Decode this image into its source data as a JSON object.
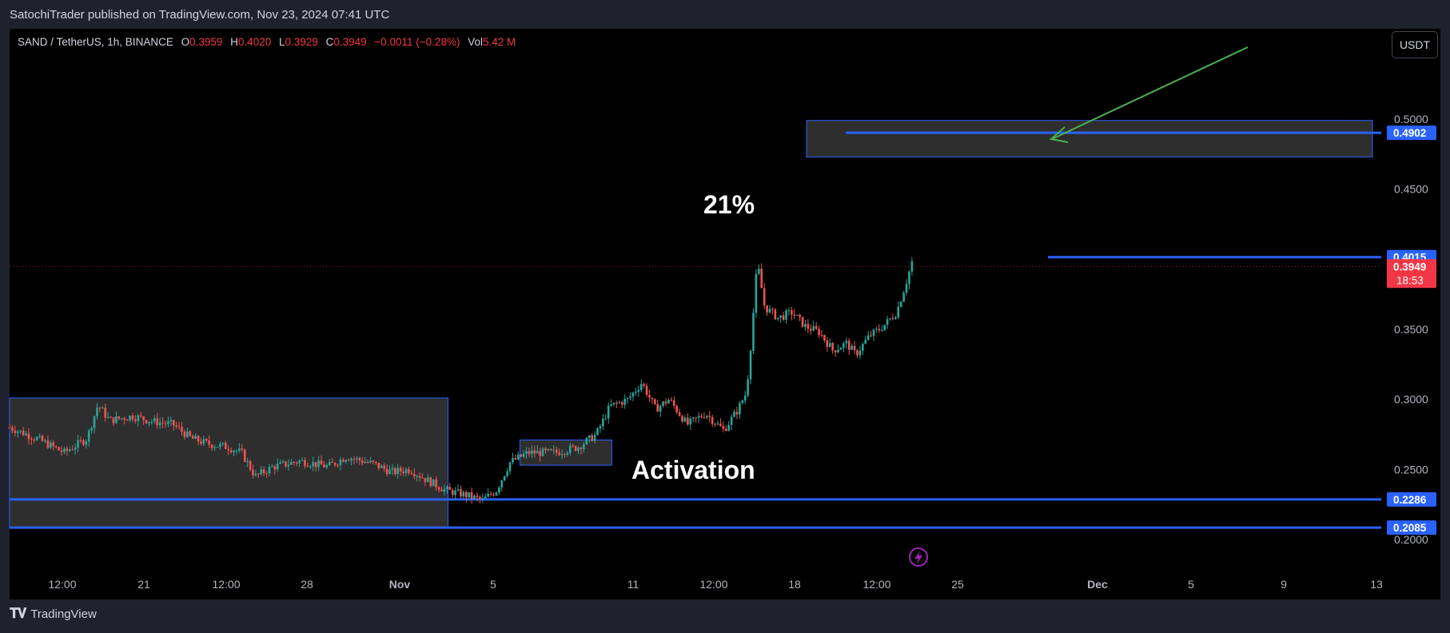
{
  "header": {
    "published": "SatochiTrader published on TradingView.com, Nov 23, 2024 07:41 UTC"
  },
  "legend": {
    "symbol": "SAND / TetherUS, 1h, BINANCE",
    "o_label": "O",
    "o": "0.3959",
    "h_label": "H",
    "h": "0.4020",
    "l_label": "L",
    "l": "0.3929",
    "c_label": "C",
    "c": "0.3949",
    "change": "−0.0011 (−0.28%)",
    "vol_label": "Vol",
    "vol": "5.42 M"
  },
  "currency_button": "USDT",
  "footer": {
    "logo_icon": "tradingview-logo-icon",
    "brand": "TradingView"
  },
  "chart_data": {
    "type": "candlestick",
    "title": "SAND / TetherUS, 1h, BINANCE",
    "xlabel": "",
    "ylabel": "",
    "ylim": [
      0.19,
      0.54
    ],
    "grid": false,
    "x_tick_labels": [
      "12:00",
      "21",
      "12:00",
      "28",
      "Nov",
      "5",
      "11",
      "12:00",
      "18",
      "12:00",
      "25",
      "Dec",
      "5",
      "9",
      "13"
    ],
    "y_tick_labels": [
      "0.5000",
      "0.4500",
      "0.3500",
      "0.3000",
      "0.2500",
      "0.2000"
    ],
    "y_ticks": [
      0.5,
      0.45,
      0.35,
      0.3,
      0.25,
      0.2
    ],
    "price_path": [
      [
        0.0,
        0.28
      ],
      [
        0.03,
        0.272
      ],
      [
        0.06,
        0.262
      ],
      [
        0.085,
        0.272
      ],
      [
        0.097,
        0.296
      ],
      [
        0.11,
        0.285
      ],
      [
        0.135,
        0.288
      ],
      [
        0.16,
        0.284
      ],
      [
        0.18,
        0.282
      ],
      [
        0.2,
        0.272
      ],
      [
        0.22,
        0.268
      ],
      [
        0.24,
        0.266
      ],
      [
        0.255,
        0.262
      ],
      [
        0.27,
        0.245
      ],
      [
        0.29,
        0.252
      ],
      [
        0.32,
        0.256
      ],
      [
        0.35,
        0.252
      ],
      [
        0.37,
        0.259
      ],
      [
        0.4,
        0.254
      ],
      [
        0.42,
        0.248
      ],
      [
        0.44,
        0.25
      ],
      [
        0.46,
        0.242
      ],
      [
        0.48,
        0.235
      ],
      [
        0.5,
        0.232
      ],
      [
        0.52,
        0.228
      ],
      [
        0.535,
        0.235
      ],
      [
        0.55,
        0.255
      ],
      [
        0.57,
        0.262
      ],
      [
        0.6,
        0.262
      ],
      [
        0.625,
        0.266
      ],
      [
        0.645,
        0.275
      ],
      [
        0.66,
        0.295
      ],
      [
        0.68,
        0.3
      ],
      [
        0.695,
        0.312
      ],
      [
        0.71,
        0.293
      ],
      [
        0.725,
        0.3
      ],
      [
        0.745,
        0.282
      ],
      [
        0.765,
        0.29
      ],
      [
        0.785,
        0.278
      ],
      [
        0.8,
        0.292
      ],
      [
        0.81,
        0.305
      ],
      [
        0.815,
        0.34
      ],
      [
        0.822,
        0.398
      ],
      [
        0.83,
        0.366
      ],
      [
        0.845,
        0.358
      ],
      [
        0.86,
        0.362
      ],
      [
        0.875,
        0.352
      ],
      [
        0.89,
        0.348
      ],
      [
        0.905,
        0.335
      ],
      [
        0.92,
        0.34
      ],
      [
        0.93,
        0.332
      ],
      [
        0.945,
        0.345
      ],
      [
        0.96,
        0.352
      ],
      [
        0.975,
        0.362
      ],
      [
        0.985,
        0.382
      ],
      [
        0.992,
        0.398
      ]
    ],
    "zones": [
      {
        "x": [
          0.0,
          0.482
        ],
        "y": [
          0.208,
          0.301
        ]
      },
      {
        "x": [
          0.561,
          0.662
        ],
        "y": [
          0.253,
          0.271
        ]
      },
      {
        "x": [
          0.872,
          1.0
        ],
        "y": [
          0.473,
          0.499
        ]
      }
    ],
    "horizontal_levels": [
      {
        "value": 0.4902,
        "label": "0.4902",
        "color": "#2962ff"
      },
      {
        "value": 0.4015,
        "label": "0.4015",
        "color": "#2962ff"
      },
      {
        "value": 0.2286,
        "label": "0.2286",
        "color": "#2962ff"
      },
      {
        "value": 0.2085,
        "label": "0.2085",
        "color": "#2962ff"
      }
    ],
    "last_price": {
      "value": 0.3949,
      "label": "0.3949",
      "countdown": "18:53",
      "color": "#f23645"
    },
    "annotations": [
      {
        "text": "21%"
      },
      {
        "text": "Activation"
      }
    ],
    "arrow_color": "#4caf50",
    "colors": {
      "up": "#26a69a",
      "down": "#ef5350",
      "zone": "#363636",
      "zone_border": "#2962ff",
      "axis_text": "#b2b5be"
    }
  }
}
